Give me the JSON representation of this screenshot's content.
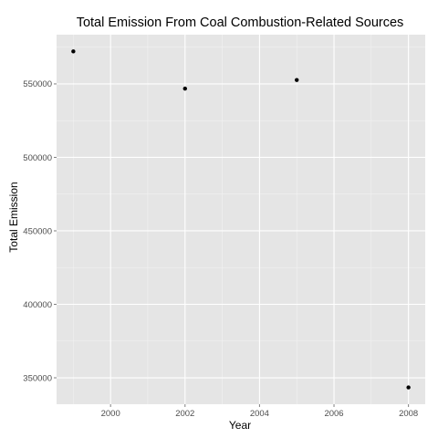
{
  "chart_data": {
    "type": "scatter",
    "title": "Total Emission From Coal Combustion-Related Sources",
    "xlabel": "Year",
    "ylabel": "Total Emission",
    "x": [
      1999,
      2002,
      2005,
      2008
    ],
    "y": [
      572126,
      546789,
      552675,
      343432
    ],
    "xlim": [
      1998.55,
      2008.45
    ],
    "ylim": [
      332000,
      583500
    ],
    "x_ticks": [
      2000,
      2002,
      2004,
      2006,
      2008
    ],
    "x_tick_labels": [
      "2000",
      "2002",
      "2004",
      "2006",
      "2008"
    ],
    "y_ticks": [
      350000,
      400000,
      450000,
      500000,
      550000
    ],
    "y_tick_labels": [
      "350000",
      "400000",
      "450000",
      "500000",
      "550000"
    ],
    "grid": true,
    "legend": "none",
    "colors": {
      "panel_background": "#e5e5e5",
      "major_grid": "#ffffff",
      "minor_grid": "#f2f2f2",
      "point": "#000000",
      "tick_mark": "#7f7f7f",
      "tick_label": "#4d4d4d"
    }
  }
}
